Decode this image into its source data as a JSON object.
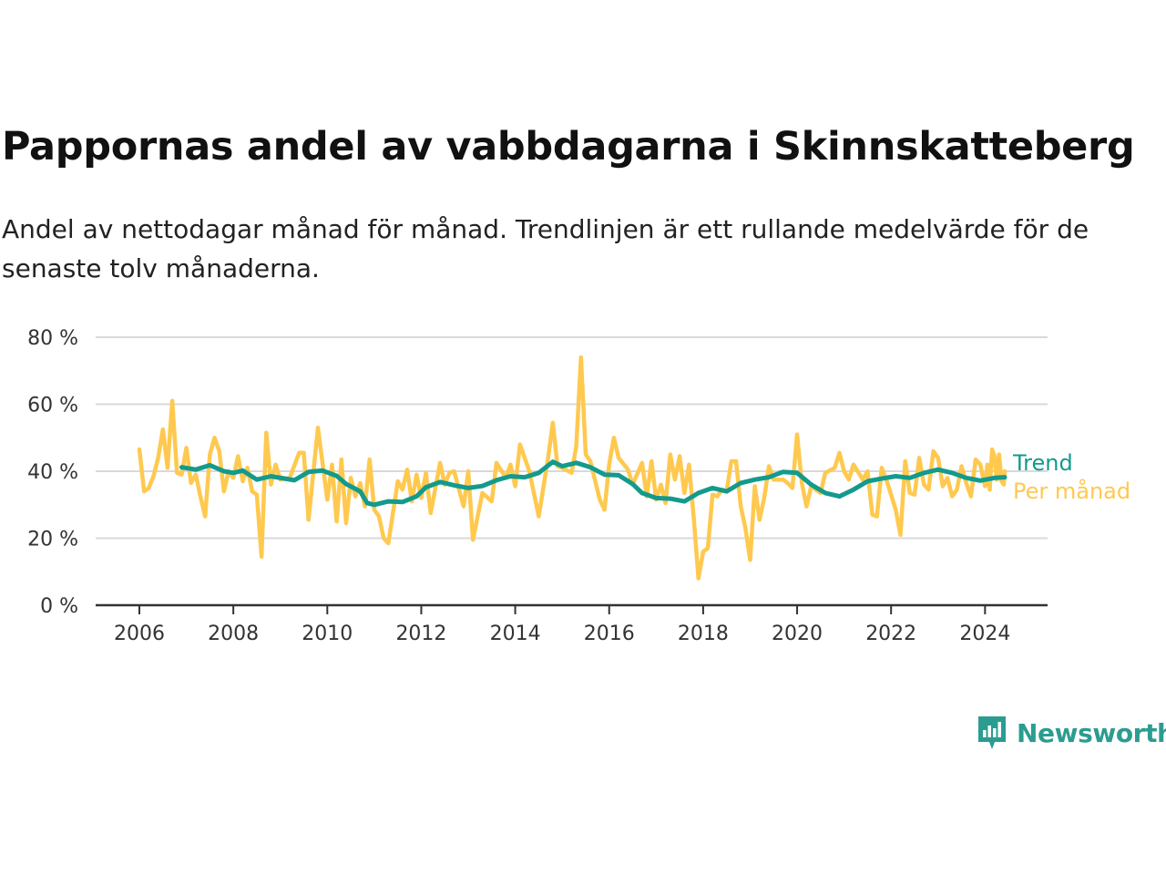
{
  "chart_data": {
    "type": "line",
    "title": "Pappornas andel av vabbdagarna i Skinnskatteberg",
    "subtitle": "Andel av nettodagar månad för månad. Trendlinjen är ett rullande medelvärde för de senaste tolv månaderna.",
    "xlabel": "",
    "ylabel": "",
    "x_ticks": [
      "2006",
      "2008",
      "2010",
      "2012",
      "2014",
      "2016",
      "2018",
      "2020",
      "2022",
      "2024"
    ],
    "y_ticks": [
      "0 %",
      "20 %",
      "40 %",
      "60 %",
      "80 %"
    ],
    "xlim": [
      2006.0,
      2024.42
    ],
    "ylim": [
      0,
      80
    ],
    "grid": true,
    "legend": "inline-right",
    "series": [
      {
        "name": "Trend",
        "color": "#139a8c",
        "points": [
          [
            2006.9,
            41.2
          ],
          [
            2007.2,
            40.5
          ],
          [
            2007.5,
            41.8
          ],
          [
            2007.8,
            40.0
          ],
          [
            2008.0,
            39.5
          ],
          [
            2008.2,
            40.2
          ],
          [
            2008.5,
            37.5
          ],
          [
            2008.8,
            38.5
          ],
          [
            2009.1,
            37.8
          ],
          [
            2009.3,
            37.3
          ],
          [
            2009.6,
            39.8
          ],
          [
            2009.9,
            40.2
          ],
          [
            2010.2,
            38.6
          ],
          [
            2010.4,
            36.2
          ],
          [
            2010.7,
            34.0
          ],
          [
            2010.85,
            30.5
          ],
          [
            2011.0,
            30.0
          ],
          [
            2011.3,
            31.0
          ],
          [
            2011.6,
            30.8
          ],
          [
            2011.9,
            32.5
          ],
          [
            2012.1,
            35.2
          ],
          [
            2012.4,
            36.8
          ],
          [
            2012.7,
            35.8
          ],
          [
            2013.0,
            35.0
          ],
          [
            2013.3,
            35.6
          ],
          [
            2013.6,
            37.3
          ],
          [
            2013.9,
            38.5
          ],
          [
            2014.2,
            38.2
          ],
          [
            2014.5,
            39.5
          ],
          [
            2014.8,
            42.8
          ],
          [
            2015.0,
            41.5
          ],
          [
            2015.3,
            42.5
          ],
          [
            2015.6,
            41.2
          ],
          [
            2015.9,
            39.0
          ],
          [
            2016.2,
            38.8
          ],
          [
            2016.5,
            36.2
          ],
          [
            2016.7,
            33.5
          ],
          [
            2017.0,
            32.0
          ],
          [
            2017.3,
            31.8
          ],
          [
            2017.6,
            31.0
          ],
          [
            2017.9,
            33.5
          ],
          [
            2018.2,
            35.0
          ],
          [
            2018.5,
            34.0
          ],
          [
            2018.8,
            36.5
          ],
          [
            2019.1,
            37.5
          ],
          [
            2019.4,
            38.2
          ],
          [
            2019.7,
            39.8
          ],
          [
            2020.0,
            39.5
          ],
          [
            2020.3,
            36.0
          ],
          [
            2020.6,
            33.5
          ],
          [
            2020.9,
            32.5
          ],
          [
            2021.2,
            34.5
          ],
          [
            2021.5,
            37.0
          ],
          [
            2021.8,
            37.8
          ],
          [
            2022.1,
            38.5
          ],
          [
            2022.4,
            38.0
          ],
          [
            2022.7,
            39.5
          ],
          [
            2023.0,
            40.5
          ],
          [
            2023.3,
            39.5
          ],
          [
            2023.6,
            38.0
          ],
          [
            2023.9,
            37.2
          ],
          [
            2024.2,
            38.0
          ],
          [
            2024.42,
            38.2
          ]
        ]
      },
      {
        "name": "Per månad",
        "color": "#ffc94f",
        "points": [
          [
            2006.0,
            46.5
          ],
          [
            2006.1,
            34.0
          ],
          [
            2006.2,
            35.0
          ],
          [
            2006.3,
            38.5
          ],
          [
            2006.4,
            44.0
          ],
          [
            2006.5,
            52.5
          ],
          [
            2006.6,
            41.0
          ],
          [
            2006.7,
            61.0
          ],
          [
            2006.8,
            39.5
          ],
          [
            2006.9,
            39.0
          ],
          [
            2007.0,
            47.0
          ],
          [
            2007.1,
            36.5
          ],
          [
            2007.2,
            39.0
          ],
          [
            2007.3,
            32.5
          ],
          [
            2007.4,
            26.5
          ],
          [
            2007.5,
            45.0
          ],
          [
            2007.6,
            50.0
          ],
          [
            2007.7,
            46.0
          ],
          [
            2007.8,
            34.0
          ],
          [
            2007.9,
            40.0
          ],
          [
            2008.0,
            38.0
          ],
          [
            2008.1,
            44.5
          ],
          [
            2008.2,
            37.0
          ],
          [
            2008.3,
            41.0
          ],
          [
            2008.4,
            34.0
          ],
          [
            2008.5,
            33.0
          ],
          [
            2008.6,
            14.5
          ],
          [
            2008.7,
            51.5
          ],
          [
            2008.8,
            36.0
          ],
          [
            2008.9,
            42.0
          ],
          [
            2009.0,
            37.5
          ],
          [
            2009.2,
            38.0
          ],
          [
            2009.4,
            45.5
          ],
          [
            2009.5,
            45.5
          ],
          [
            2009.6,
            25.5
          ],
          [
            2009.8,
            53.0
          ],
          [
            2010.0,
            31.5
          ],
          [
            2010.1,
            42.0
          ],
          [
            2010.2,
            25.0
          ],
          [
            2010.3,
            43.5
          ],
          [
            2010.4,
            24.5
          ],
          [
            2010.5,
            38.0
          ],
          [
            2010.6,
            32.5
          ],
          [
            2010.7,
            36.5
          ],
          [
            2010.8,
            29.5
          ],
          [
            2010.9,
            43.5
          ],
          [
            2011.0,
            28.5
          ],
          [
            2011.1,
            26.5
          ],
          [
            2011.2,
            20.0
          ],
          [
            2011.3,
            18.5
          ],
          [
            2011.5,
            37.0
          ],
          [
            2011.6,
            34.5
          ],
          [
            2011.7,
            40.5
          ],
          [
            2011.8,
            31.0
          ],
          [
            2011.9,
            39.0
          ],
          [
            2012.0,
            32.0
          ],
          [
            2012.1,
            39.5
          ],
          [
            2012.2,
            27.5
          ],
          [
            2012.4,
            42.5
          ],
          [
            2012.5,
            36.0
          ],
          [
            2012.6,
            39.5
          ],
          [
            2012.7,
            40.0
          ],
          [
            2012.9,
            29.5
          ],
          [
            2013.0,
            40.0
          ],
          [
            2013.1,
            19.5
          ],
          [
            2013.3,
            33.5
          ],
          [
            2013.5,
            31.0
          ],
          [
            2013.6,
            42.5
          ],
          [
            2013.8,
            38.0
          ],
          [
            2013.9,
            42.0
          ],
          [
            2014.0,
            35.5
          ],
          [
            2014.1,
            48.0
          ],
          [
            2014.3,
            40.0
          ],
          [
            2014.5,
            26.5
          ],
          [
            2014.7,
            44.0
          ],
          [
            2014.8,
            54.5
          ],
          [
            2014.9,
            41.5
          ],
          [
            2015.0,
            41.0
          ],
          [
            2015.2,
            39.5
          ],
          [
            2015.3,
            47.5
          ],
          [
            2015.4,
            74.0
          ],
          [
            2015.5,
            45.0
          ],
          [
            2015.6,
            43.0
          ],
          [
            2015.8,
            31.5
          ],
          [
            2015.9,
            28.5
          ],
          [
            2016.0,
            42.0
          ],
          [
            2016.1,
            50.0
          ],
          [
            2016.2,
            44.0
          ],
          [
            2016.4,
            40.5
          ],
          [
            2016.5,
            36.0
          ],
          [
            2016.7,
            42.5
          ],
          [
            2016.8,
            32.5
          ],
          [
            2016.9,
            43.0
          ],
          [
            2017.0,
            31.5
          ],
          [
            2017.1,
            36.0
          ],
          [
            2017.2,
            30.5
          ],
          [
            2017.3,
            45.0
          ],
          [
            2017.4,
            37.5
          ],
          [
            2017.5,
            44.5
          ],
          [
            2017.6,
            33.5
          ],
          [
            2017.7,
            42.0
          ],
          [
            2017.8,
            26.0
          ],
          [
            2017.9,
            8.0
          ],
          [
            2018.0,
            16.0
          ],
          [
            2018.1,
            17.0
          ],
          [
            2018.2,
            33.0
          ],
          [
            2018.3,
            32.5
          ],
          [
            2018.4,
            34.5
          ],
          [
            2018.5,
            34.0
          ],
          [
            2018.6,
            43.0
          ],
          [
            2018.7,
            43.0
          ],
          [
            2018.8,
            29.5
          ],
          [
            2018.9,
            23.0
          ],
          [
            2019.0,
            13.5
          ],
          [
            2019.1,
            35.5
          ],
          [
            2019.2,
            25.5
          ],
          [
            2019.3,
            32.0
          ],
          [
            2019.4,
            41.5
          ],
          [
            2019.5,
            37.5
          ],
          [
            2019.7,
            37.5
          ],
          [
            2019.8,
            36.5
          ],
          [
            2019.9,
            35.0
          ],
          [
            2020.0,
            51.0
          ],
          [
            2020.1,
            36.5
          ],
          [
            2020.2,
            29.5
          ],
          [
            2020.3,
            35.5
          ],
          [
            2020.5,
            33.5
          ],
          [
            2020.6,
            39.5
          ],
          [
            2020.8,
            41.0
          ],
          [
            2020.9,
            45.5
          ],
          [
            2021.0,
            40.0
          ],
          [
            2021.1,
            37.5
          ],
          [
            2021.2,
            42.0
          ],
          [
            2021.4,
            37.5
          ],
          [
            2021.5,
            40.0
          ],
          [
            2021.6,
            27.0
          ],
          [
            2021.7,
            26.5
          ],
          [
            2021.8,
            41.0
          ],
          [
            2021.9,
            37.5
          ],
          [
            2022.0,
            33.0
          ],
          [
            2022.1,
            28.5
          ],
          [
            2022.2,
            21.0
          ],
          [
            2022.3,
            43.0
          ],
          [
            2022.4,
            33.5
          ],
          [
            2022.5,
            33.0
          ],
          [
            2022.6,
            44.0
          ],
          [
            2022.7,
            36.0
          ],
          [
            2022.8,
            34.5
          ],
          [
            2022.9,
            46.0
          ],
          [
            2023.0,
            44.0
          ],
          [
            2023.1,
            35.5
          ],
          [
            2023.2,
            38.0
          ],
          [
            2023.3,
            32.5
          ],
          [
            2023.4,
            34.5
          ],
          [
            2023.5,
            41.5
          ],
          [
            2023.6,
            36.5
          ],
          [
            2023.7,
            32.5
          ],
          [
            2023.8,
            43.5
          ],
          [
            2023.9,
            42.0
          ],
          [
            2024.0,
            35.5
          ],
          [
            2024.05,
            42.0
          ],
          [
            2024.1,
            34.5
          ],
          [
            2024.15,
            46.5
          ],
          [
            2024.2,
            44.5
          ],
          [
            2024.25,
            37.5
          ],
          [
            2024.3,
            45.0
          ],
          [
            2024.35,
            37.0
          ],
          [
            2024.4,
            36.0
          ],
          [
            2024.42,
            40.0
          ]
        ]
      }
    ]
  },
  "branding": {
    "logo_text": "Newsworthy",
    "logo_icon": "newsworthy-chart-bubble-icon",
    "color": "#2b9c90"
  }
}
